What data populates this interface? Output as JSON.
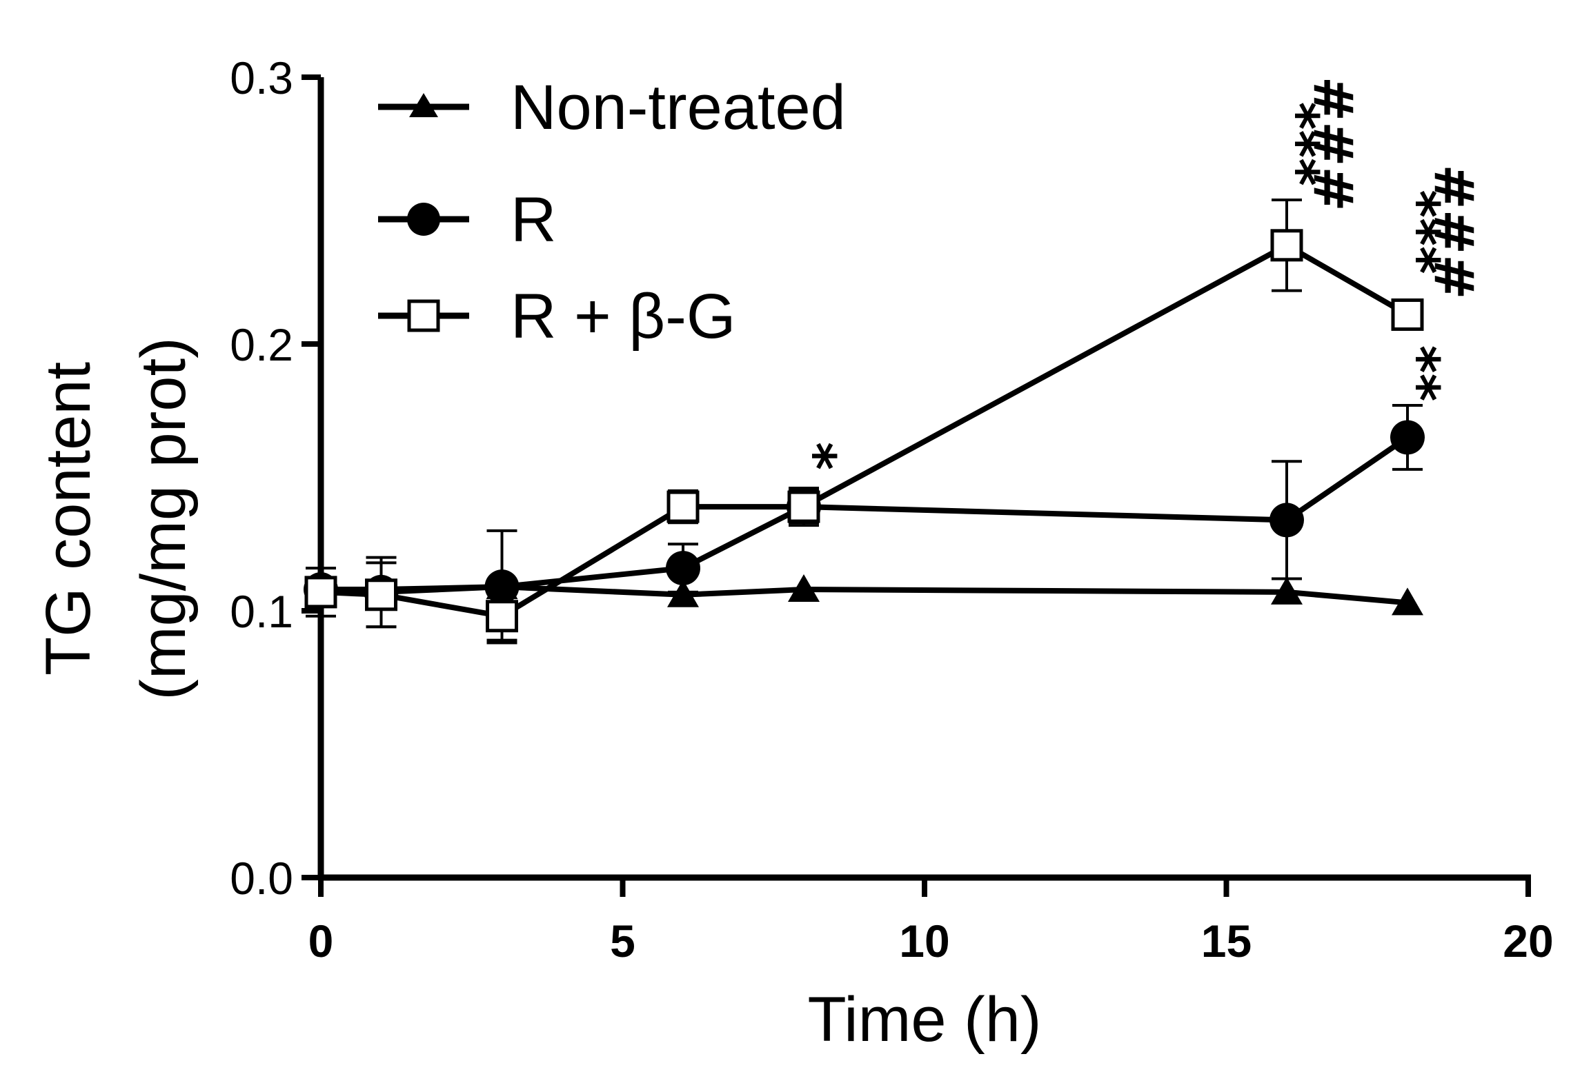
{
  "chart_data": {
    "type": "line",
    "title": "",
    "xlabel": "Time (h)",
    "ylabel": [
      "TG content",
      "(mg/mg prot)"
    ],
    "xlim": [
      0,
      20
    ],
    "ylim": [
      0.0,
      0.3
    ],
    "x_ticks": [
      0,
      5,
      10,
      15,
      20
    ],
    "x_tick_labels": [
      "0",
      "5",
      "10",
      "15",
      "20"
    ],
    "y_ticks": [
      0.0,
      0.1,
      0.2,
      0.3
    ],
    "y_tick_labels": [
      "0.0",
      "0.1",
      "0.2",
      "0.3"
    ],
    "legend_position": "top-left",
    "series": [
      {
        "name": "Non-treated",
        "marker": "triangle",
        "color": "#000000",
        "x": [
          0,
          1,
          3,
          6,
          8,
          16,
          18
        ],
        "values": [
          0.108,
          0.108,
          0.109,
          0.106,
          0.108,
          0.107,
          0.103
        ],
        "errors": [
          0.0,
          0.0,
          0.0,
          0.0,
          0.0,
          0.0,
          0.0
        ]
      },
      {
        "name": "R",
        "marker": "circle",
        "color": "#000000",
        "x": [
          0,
          1,
          3,
          6,
          8,
          16,
          18
        ],
        "values": [
          0.108,
          0.107,
          0.109,
          0.116,
          0.139,
          0.134,
          0.165
        ],
        "errors": [
          0.0,
          0.013,
          0.021,
          0.009,
          0.007,
          0.022,
          0.012
        ]
      },
      {
        "name": "R + β-G",
        "marker": "square-open",
        "color": "#000000",
        "x": [
          0,
          1,
          3,
          6,
          8,
          16,
          18
        ],
        "values": [
          0.107,
          0.106,
          0.098,
          0.139,
          0.139,
          0.237,
          0.211
        ],
        "errors": [
          0.009,
          0.012,
          0.009,
          0.006,
          0.006,
          0.017,
          0.0
        ]
      }
    ],
    "annotations": [
      {
        "x": 8,
        "y": 0.158,
        "stars": "*",
        "hashes": ""
      },
      {
        "x": 18,
        "y": 0.189,
        "stars": "**",
        "hashes": ""
      },
      {
        "x": 16,
        "y": 0.275,
        "stars": "***",
        "hashes": "###"
      },
      {
        "x": 18,
        "y": 0.242,
        "stars": "***",
        "hashes": "###"
      }
    ]
  }
}
